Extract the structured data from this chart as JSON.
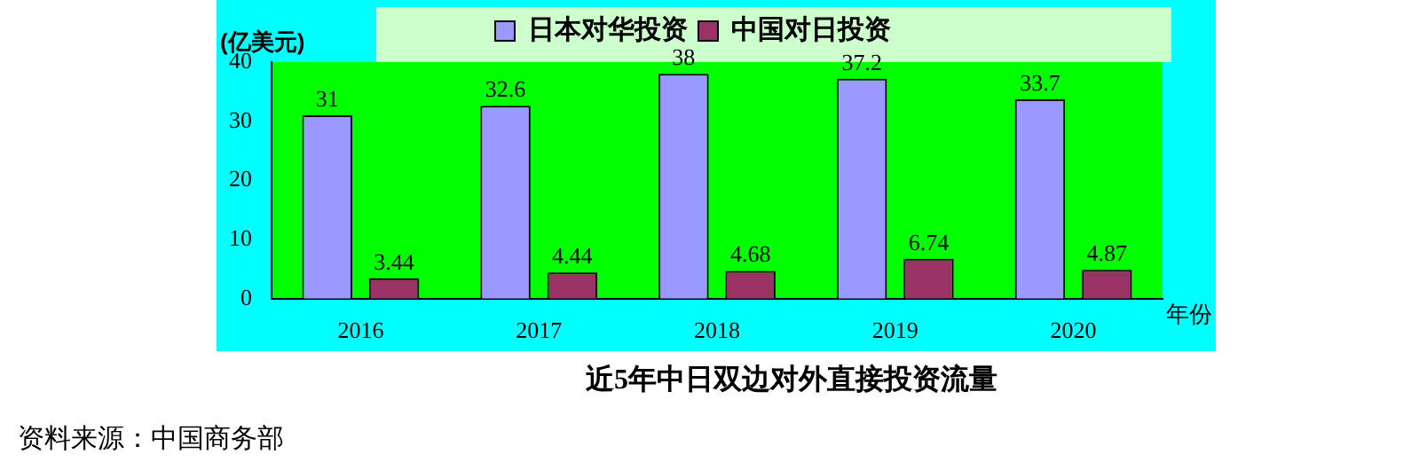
{
  "chart_data": {
    "type": "bar",
    "title": "近5年中日双边对外直接投资流量",
    "ylabel": "(亿美元)",
    "xlabel": "年份",
    "annotations": [
      "资料来源：中国商务部"
    ],
    "categories": [
      "2016",
      "2017",
      "2018",
      "2019",
      "2020"
    ],
    "series": [
      {
        "name": "日本对华投资",
        "color": "#9999ff",
        "values": [
          31,
          32.6,
          38,
          37.2,
          33.7
        ]
      },
      {
        "name": "中国对日投资",
        "color": "#993366",
        "values": [
          3.44,
          4.44,
          4.68,
          6.74,
          4.87
        ]
      }
    ],
    "ylim": [
      0,
      40
    ],
    "yticks": [
      0,
      10,
      20,
      30,
      40
    ],
    "grid": false,
    "legend": "top",
    "data_labels": true
  }
}
